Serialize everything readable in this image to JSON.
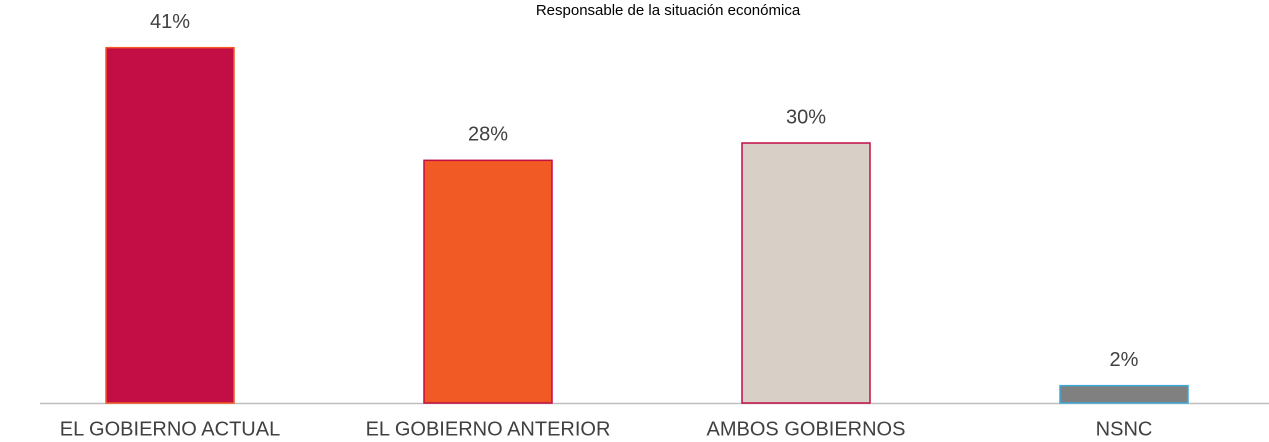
{
  "chart_data": {
    "type": "bar",
    "title": "Responsable de la situación económica",
    "categories": [
      "EL GOBIERNO ACTUAL",
      "EL GOBIERNO ANTERIOR",
      "AMBOS GOBIERNOS",
      "NSNC"
    ],
    "values": [
      41,
      28,
      30,
      2
    ],
    "value_labels": [
      "41%",
      "28%",
      "30%",
      "2%"
    ],
    "colors": [
      "#c30d45",
      "#f15a24",
      "#d8cfc6",
      "#808080"
    ],
    "edgecolors": [
      "#f15a24",
      "#c30d45",
      "#c30d45",
      "#3aa8d8"
    ],
    "ylim": [
      0,
      45
    ]
  }
}
